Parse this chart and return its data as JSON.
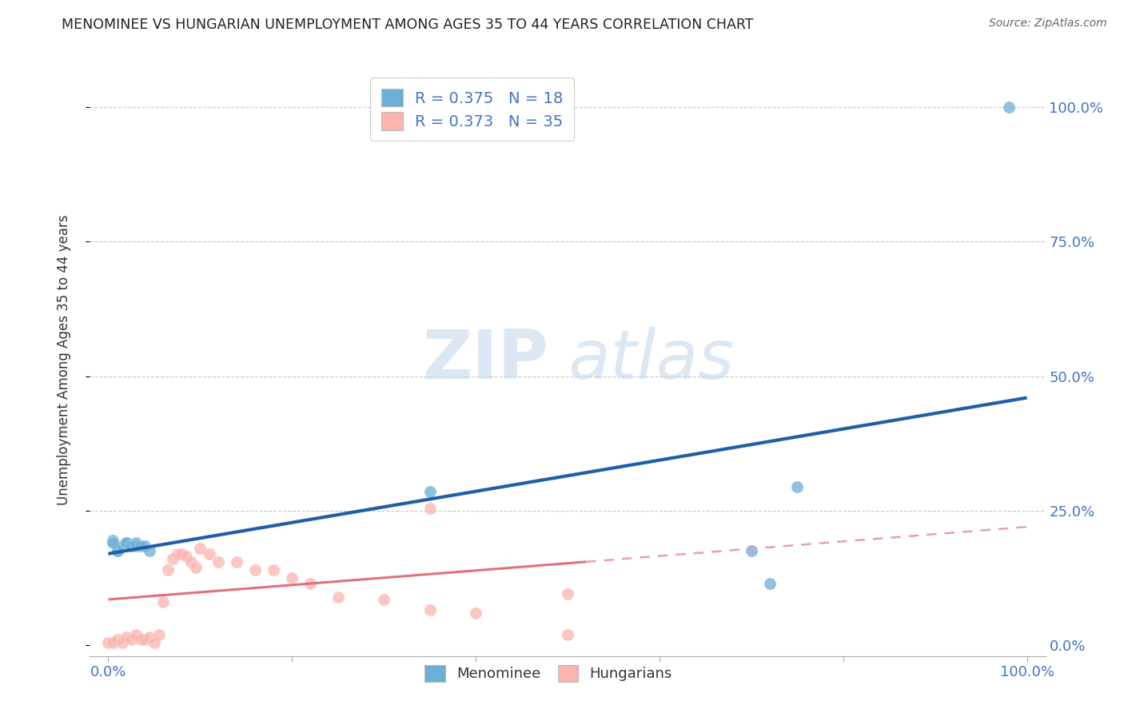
{
  "title": "MENOMINEE VS HUNGARIAN UNEMPLOYMENT AMONG AGES 35 TO 44 YEARS CORRELATION CHART",
  "source": "Source: ZipAtlas.com",
  "ylabel": "Unemployment Among Ages 35 to 44 years",
  "ytick_values": [
    0.0,
    0.25,
    0.5,
    0.75,
    1.0
  ],
  "ytick_labels": [
    "0.0%",
    "25.0%",
    "50.0%",
    "75.0%",
    "100.0%"
  ],
  "xlim": [
    -0.02,
    1.02
  ],
  "ylim": [
    -0.02,
    1.08
  ],
  "menominee_scatter_x": [
    0.005,
    0.01,
    0.01,
    0.015,
    0.02,
    0.02,
    0.025,
    0.03,
    0.03,
    0.035,
    0.04,
    0.045,
    0.005,
    0.35,
    0.7,
    0.72,
    0.75,
    0.98
  ],
  "menominee_scatter_y": [
    0.195,
    0.175,
    0.175,
    0.185,
    0.19,
    0.19,
    0.185,
    0.185,
    0.19,
    0.185,
    0.185,
    0.175,
    0.19,
    0.285,
    0.175,
    0.115,
    0.295,
    1.0
  ],
  "hungarian_scatter_x": [
    0.0,
    0.005,
    0.01,
    0.015,
    0.02,
    0.025,
    0.03,
    0.035,
    0.04,
    0.045,
    0.05,
    0.055,
    0.06,
    0.065,
    0.07,
    0.075,
    0.08,
    0.085,
    0.09,
    0.095,
    0.1,
    0.11,
    0.12,
    0.14,
    0.16,
    0.18,
    0.2,
    0.22,
    0.25,
    0.3,
    0.35,
    0.4,
    0.5,
    0.35,
    0.5
  ],
  "hungarian_scatter_y": [
    0.005,
    0.005,
    0.01,
    0.005,
    0.015,
    0.01,
    0.02,
    0.01,
    0.01,
    0.015,
    0.005,
    0.02,
    0.08,
    0.14,
    0.16,
    0.17,
    0.17,
    0.165,
    0.155,
    0.145,
    0.18,
    0.17,
    0.155,
    0.155,
    0.14,
    0.14,
    0.125,
    0.115,
    0.09,
    0.085,
    0.065,
    0.06,
    0.02,
    0.255,
    0.095
  ],
  "menominee_color": "#6baed6",
  "hungarian_color": "#fbb4ae",
  "menominee_trend_x0": 0.0,
  "menominee_trend_x1": 1.0,
  "menominee_trend_y0": 0.17,
  "menominee_trend_y1": 0.46,
  "hungarian_trend_solid_x0": 0.0,
  "hungarian_trend_solid_x1": 0.52,
  "hungarian_trend_solid_y0": 0.085,
  "hungarian_trend_solid_y1": 0.155,
  "hungarian_trend_dash_x0": 0.52,
  "hungarian_trend_dash_x1": 1.0,
  "hungarian_trend_dash_y0": 0.155,
  "hungarian_trend_dash_y1": 0.22,
  "menominee_R": "0.375",
  "menominee_N": "18",
  "hungarian_R": "0.373",
  "hungarian_N": "35",
  "watermark_zip": "ZIP",
  "watermark_atlas": "atlas",
  "title_color": "#222222",
  "axis_label_color": "#333333",
  "tick_color": "#4472c4",
  "grid_color": "#c8c8c8",
  "trend_blue_color": "#1f5fa6",
  "trend_pink_solid_color": "#e07080",
  "trend_pink_dash_color": "#e8a0a8"
}
